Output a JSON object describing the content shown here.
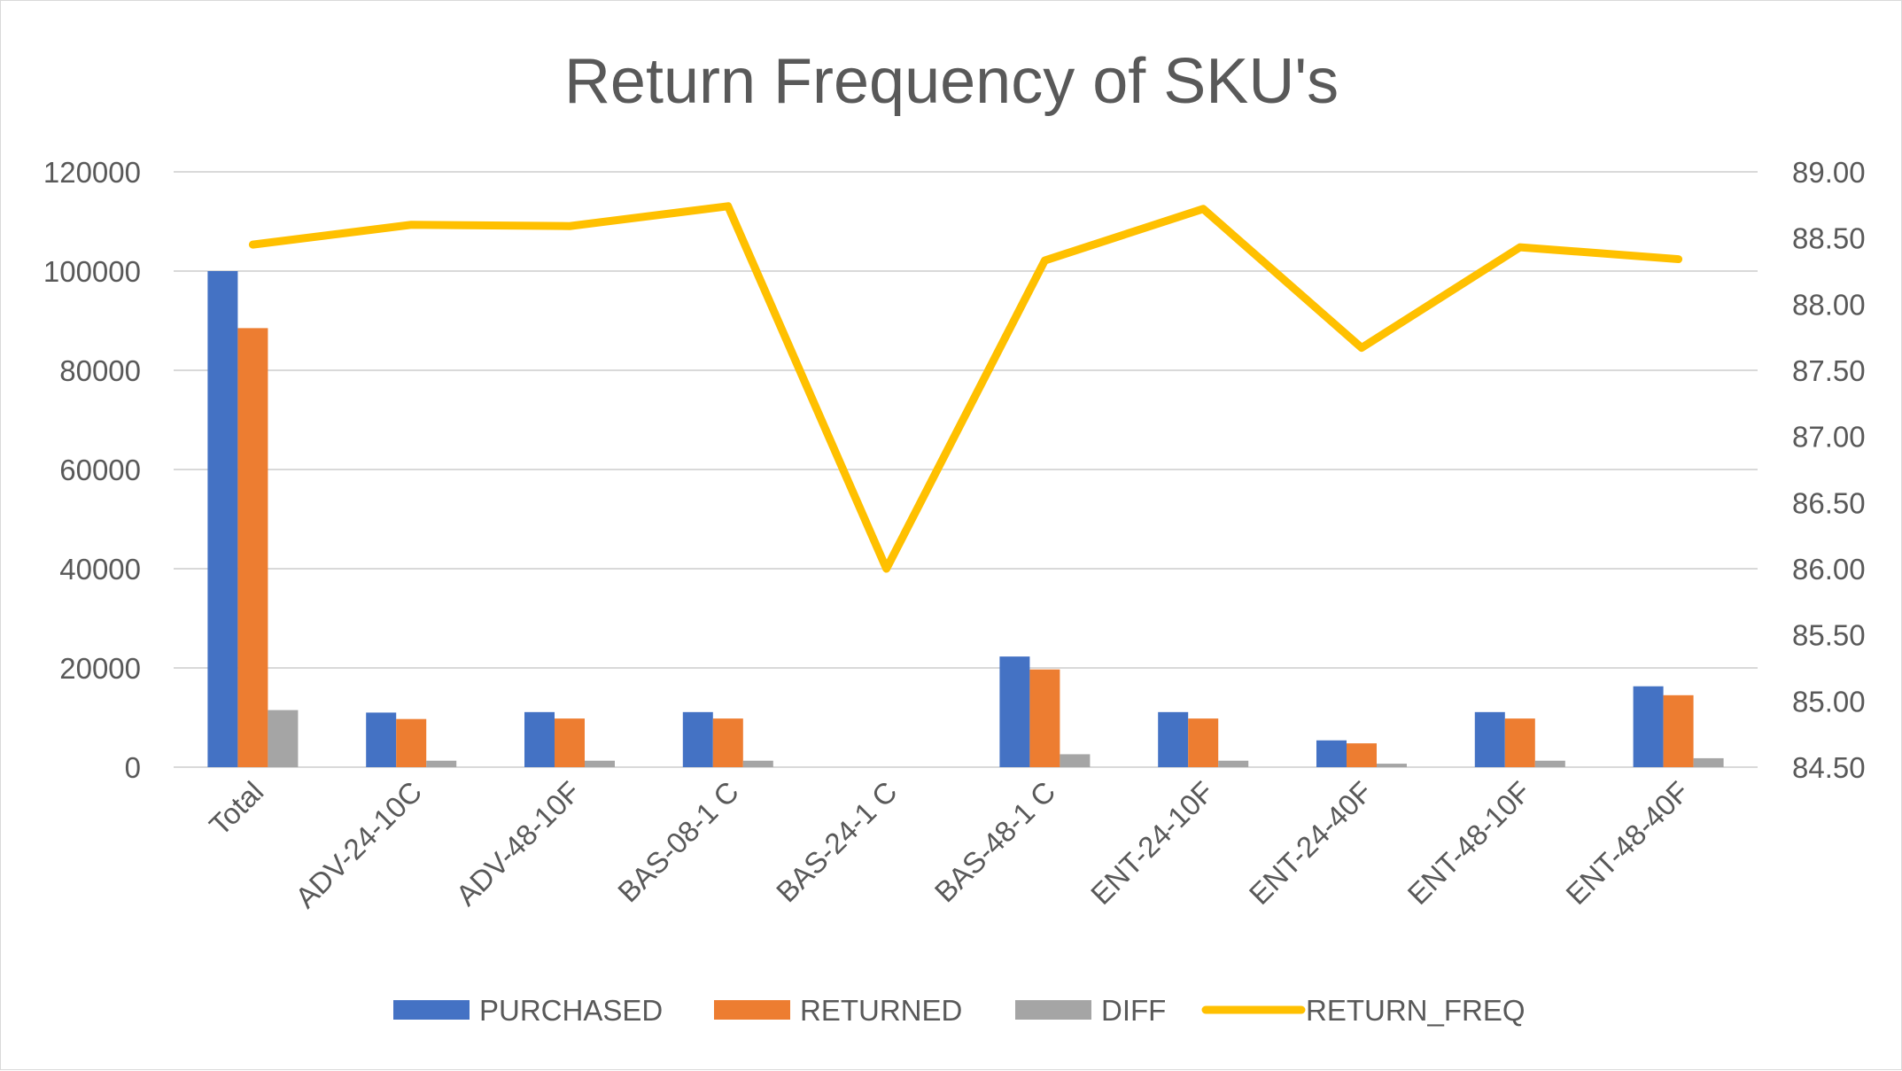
{
  "chart_data": {
    "type": "bar",
    "title": "Return Frequency of SKU's",
    "categories": [
      "Total",
      "ADV-24-10C",
      "ADV-48-10F",
      "BAS-08-1 C",
      "BAS-24-1 C",
      "BAS-48-1 C",
      "ENT-24-10F",
      "ENT-24-40F",
      "ENT-48-10F",
      "ENT-48-40F"
    ],
    "series": [
      {
        "name": "PURCHASED",
        "type": "bar",
        "axis": "left",
        "color": "#4472C4",
        "values": [
          100000,
          11000,
          11100,
          11100,
          0,
          22300,
          11100,
          5400,
          11100,
          16300
        ]
      },
      {
        "name": "RETURNED",
        "type": "bar",
        "axis": "left",
        "color": "#ED7D31",
        "values": [
          88500,
          9700,
          9800,
          9800,
          0,
          19700,
          9800,
          4800,
          9800,
          14500
        ]
      },
      {
        "name": "DIFF",
        "type": "bar",
        "axis": "left",
        "color": "#A5A5A5",
        "values": [
          11500,
          1300,
          1300,
          1300,
          0,
          2600,
          1300,
          700,
          1300,
          1800
        ]
      },
      {
        "name": "RETURN_FREQ",
        "type": "line",
        "axis": "right",
        "color": "#FFC000",
        "values": [
          88.45,
          88.6,
          88.59,
          88.74,
          86.0,
          88.33,
          88.72,
          87.67,
          88.43,
          88.34
        ]
      }
    ],
    "y_left": {
      "min": 0,
      "max": 120000,
      "step": 20000,
      "ticks": [
        "0",
        "20000",
        "40000",
        "60000",
        "80000",
        "100000",
        "120000"
      ]
    },
    "y_right": {
      "min": 84.5,
      "max": 89.0,
      "step": 0.5,
      "ticks": [
        "84.50",
        "85.00",
        "85.50",
        "86.00",
        "86.50",
        "87.00",
        "87.50",
        "88.00",
        "88.50",
        "89.00"
      ]
    },
    "grid": true,
    "legend_position": "bottom"
  }
}
